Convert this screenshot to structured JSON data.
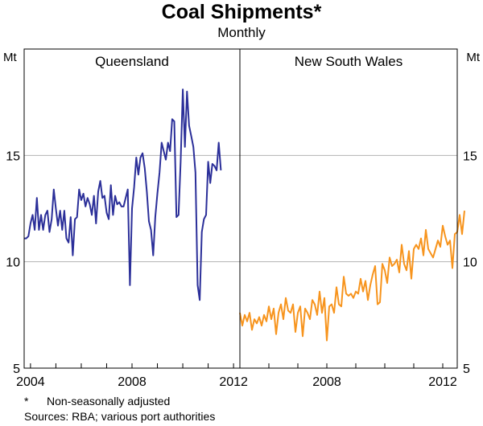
{
  "title": "Coal Shipments*",
  "subtitle": "Monthly",
  "footnotes": {
    "note_marker": "*",
    "note_text": "Non-seasonally adjusted",
    "sources": "Sources: RBA; various port authorities"
  },
  "chart_data": {
    "type": "line",
    "unit_left": "Mt",
    "unit_right": "Mt",
    "ylim": [
      5,
      20
    ],
    "yticks": [
      5,
      10,
      15
    ],
    "grid": true,
    "panels": [
      {
        "name": "Queensland",
        "color": "#2b2f99",
        "x_range": [
          2003.75,
          2012.25
        ],
        "xtick_labels": [
          {
            "value": 2004,
            "label": "2004"
          },
          {
            "value": 2008,
            "label": "2008"
          },
          {
            "value": 2012,
            "label": "2012"
          }
        ],
        "series": {
          "start": 2003.75,
          "step": 0.0833333,
          "values": [
            11.1,
            11.1,
            11.2,
            11.8,
            12.2,
            11.5,
            13.0,
            11.5,
            12.2,
            11.5,
            12.2,
            12.4,
            11.4,
            12.0,
            13.4,
            12.5,
            11.7,
            12.4,
            11.5,
            12.4,
            11.1,
            10.9,
            12.1,
            10.3,
            12.0,
            12.1,
            13.4,
            12.9,
            13.2,
            12.6,
            13.0,
            12.7,
            12.2,
            13.1,
            11.8,
            13.3,
            13.8,
            13.0,
            13.1,
            12.3,
            12.0,
            13.6,
            12.2,
            13.1,
            12.7,
            12.8,
            12.6,
            12.6,
            13.0,
            13.4,
            8.9,
            12.5,
            13.5,
            14.9,
            14.1,
            14.9,
            15.1,
            14.4,
            13.3,
            11.9,
            11.5,
            10.3,
            12.1,
            13.2,
            14.2,
            15.6,
            15.2,
            14.8,
            15.6,
            15.2,
            16.7,
            16.6,
            12.1,
            12.2,
            14.7,
            18.1,
            15.4,
            18.0,
            16.4,
            15.9,
            15.4,
            14.2,
            8.9,
            8.2,
            11.4,
            12.0,
            12.2,
            14.7,
            13.7,
            14.6,
            14.5,
            14.3,
            15.6,
            14.3
          ]
        }
      },
      {
        "name": "New South Wales",
        "color": "#f7941d",
        "x_range": [
          2005.0,
          2012.5
        ],
        "xtick_labels": [
          {
            "value": 2008,
            "label": "2008"
          },
          {
            "value": 2012,
            "label": "2012"
          }
        ],
        "series": {
          "start": 2005.0,
          "step": 0.0833333,
          "values": [
            7.6,
            7.0,
            7.5,
            7.2,
            7.6,
            6.8,
            7.3,
            7.1,
            7.4,
            7.0,
            7.5,
            7.2,
            7.9,
            7.3,
            7.8,
            6.6,
            7.6,
            8.0,
            7.3,
            8.3,
            7.7,
            7.6,
            8.0,
            6.7,
            7.6,
            7.9,
            6.5,
            7.8,
            7.6,
            7.3,
            8.2,
            8.0,
            7.5,
            8.6,
            7.6,
            8.3,
            6.3,
            7.9,
            8.0,
            7.6,
            8.8,
            8.0,
            7.9,
            9.3,
            8.5,
            8.4,
            8.5,
            8.3,
            8.6,
            8.5,
            9.2,
            8.6,
            9.1,
            8.2,
            8.9,
            9.4,
            9.8,
            8.0,
            8.1,
            9.9,
            9.6,
            9.0,
            10.2,
            9.8,
            9.9,
            10.1,
            9.5,
            10.8,
            9.9,
            9.6,
            10.5,
            9.2,
            10.6,
            10.8,
            10.6,
            11.1,
            10.3,
            11.5,
            10.6,
            10.4,
            10.2,
            10.6,
            11.0,
            10.7,
            11.7,
            11.2,
            10.8,
            11.0,
            9.7,
            11.3,
            11.4,
            12.2,
            11.3,
            12.4
          ]
        }
      }
    ]
  }
}
